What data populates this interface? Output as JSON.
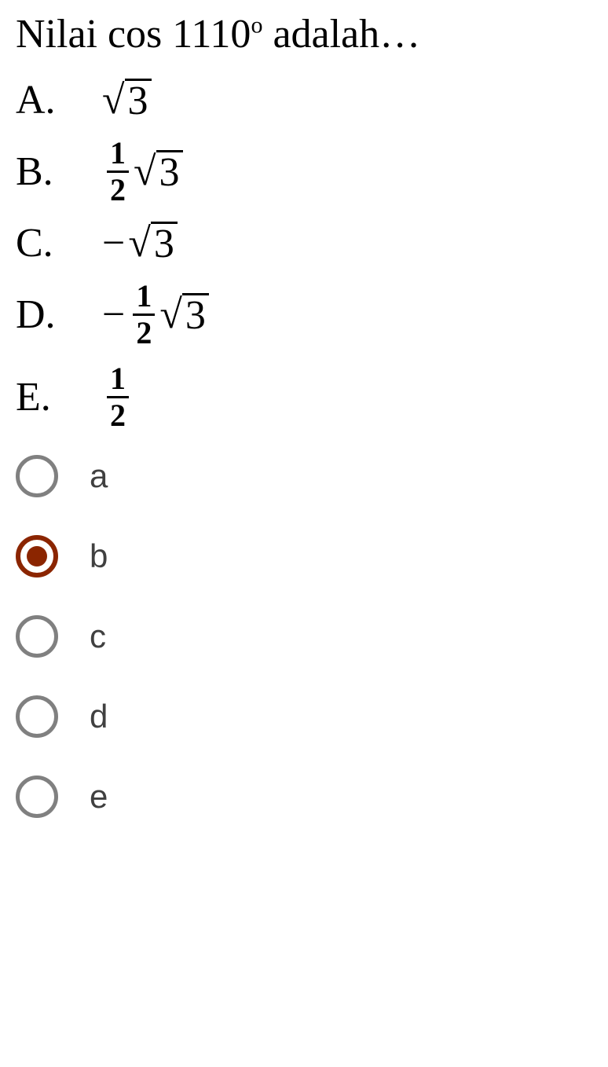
{
  "question": {
    "prefix": "Nilai cos 1110",
    "degree": "o",
    "suffix": " adalah…"
  },
  "answers": {
    "A": {
      "letter": "A.",
      "sqrt_arg": "3"
    },
    "B": {
      "letter": "B.",
      "frac_num": "1",
      "frac_den": "2",
      "sqrt_arg": "3"
    },
    "C": {
      "letter": "C.",
      "minus": "−",
      "sqrt_arg": "3"
    },
    "D": {
      "letter": "D.",
      "minus": "−",
      "frac_num": "1",
      "frac_den": "2",
      "sqrt_arg": "3"
    },
    "E": {
      "letter": "E.",
      "frac_num": "1",
      "frac_den": "2"
    }
  },
  "radios": {
    "a": {
      "label": "a",
      "selected": false
    },
    "b": {
      "label": "b",
      "selected": true
    },
    "c": {
      "label": "c",
      "selected": false
    },
    "d": {
      "label": "d",
      "selected": false
    },
    "e": {
      "label": "e",
      "selected": false
    }
  },
  "colors": {
    "text": "#000000",
    "radio_unselected": "#808080",
    "radio_selected": "#8B2500",
    "radio_label": "#404040",
    "background": "#ffffff"
  },
  "typography": {
    "question_fontsize": 52,
    "answer_fontsize": 52,
    "fraction_fontsize": 40,
    "radio_label_fontsize": 42,
    "question_font": "Times New Roman",
    "radio_font": "Arial"
  }
}
